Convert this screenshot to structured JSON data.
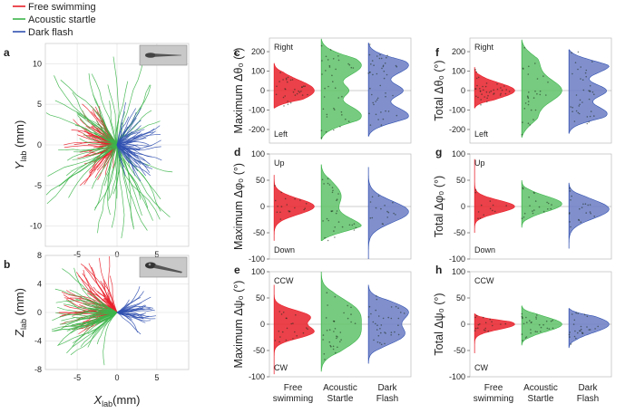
{
  "legend": {
    "items": [
      {
        "label": "Free swimming",
        "color": "#e8202a"
      },
      {
        "label": "Acoustic startle",
        "color": "#3cb54a"
      },
      {
        "label": "Dark flash",
        "color": "#3050b0"
      }
    ]
  },
  "panel_letters": {
    "a": "a",
    "b": "b",
    "c": "c",
    "d": "d",
    "e": "e",
    "f": "f",
    "g": "g",
    "h": "h"
  },
  "chart_data": [
    {
      "id": "a",
      "type": "line",
      "subtype": "trajectory-overlay",
      "title": "",
      "xlabel_main": "X",
      "xlabel_sub": "lab",
      "xunit": "(mm)",
      "ylabel_main": "Y",
      "ylabel_sub": "lab",
      "yunit": "(mm)",
      "xlim": [
        -9,
        9
      ],
      "ylim": [
        -12.5,
        12.5
      ],
      "xticks": [
        -5,
        0,
        5
      ],
      "yticks": [
        -10,
        -5,
        0,
        5,
        10
      ],
      "grid": true,
      "inset": "fish-dorsal-view",
      "series": [
        {
          "name": "Free swimming",
          "count": 80,
          "angle_range_deg": [
            120,
            240
          ],
          "length_range_mm": [
            1,
            7
          ]
        },
        {
          "name": "Acoustic startle",
          "count": 70,
          "angle_range_deg": [
            40,
            320
          ],
          "length_range_mm": [
            3,
            12
          ]
        },
        {
          "name": "Dark flash",
          "count": 55,
          "angle_range_deg": [
            -70,
            70
          ],
          "length_range_mm": [
            2,
            6
          ]
        }
      ]
    },
    {
      "id": "b",
      "type": "line",
      "subtype": "trajectory-overlay",
      "xlabel_main": "X",
      "xlabel_sub": "lab",
      "xunit": "(mm)",
      "ylabel_main": "Z",
      "ylabel_sub": "lab",
      "yunit": "(mm)",
      "xlim": [
        -9,
        9
      ],
      "ylim": [
        -8,
        8
      ],
      "xticks": [
        -5,
        0,
        5
      ],
      "yticks": [
        -8,
        -4,
        0,
        4,
        8
      ],
      "grid": true,
      "inset": "fish-lateral-view",
      "series": [
        {
          "name": "Free swimming",
          "count": 70,
          "angle_range_deg": [
            115,
            200
          ],
          "length_range_mm": [
            2,
            8
          ]
        },
        {
          "name": "Acoustic startle",
          "count": 50,
          "angle_range_deg": [
            150,
            230
          ],
          "length_range_mm": [
            3,
            9
          ]
        },
        {
          "name": "Dark flash",
          "count": 30,
          "angle_range_deg": [
            -35,
            30
          ],
          "length_range_mm": [
            2,
            5
          ]
        }
      ]
    },
    {
      "id": "c",
      "type": "violin",
      "ylabel": "Maximum Δθ₀ (°)",
      "ylim": [
        -270,
        270
      ],
      "yticks": [
        -200,
        -100,
        0,
        100,
        200
      ],
      "annotations": [
        "Right",
        "Left"
      ],
      "categories": [
        "Free swimming",
        "Acoustic Startle",
        "Dark Flash"
      ],
      "series": [
        {
          "name": "Free swimming",
          "peaks": [
            [
              0,
              55,
              0.8
            ]
          ],
          "extent": [
            -90,
            140
          ]
        },
        {
          "name": "Acoustic startle",
          "peaks": [
            [
              130,
              60,
              1.0
            ],
            [
              -130,
              60,
              1.0
            ],
            [
              0,
              30,
              0.5
            ]
          ],
          "extent": [
            -250,
            265
          ]
        },
        {
          "name": "Dark flash",
          "peaks": [
            [
              130,
              50,
              1.0
            ],
            [
              -130,
              50,
              1.0
            ],
            [
              0,
              35,
              0.8
            ]
          ],
          "extent": [
            -235,
            245
          ]
        }
      ]
    },
    {
      "id": "d",
      "type": "violin",
      "ylabel": "Maximum Δφ₀ (°)",
      "ylim": [
        -100,
        100
      ],
      "yticks": [
        -100,
        -50,
        0,
        50,
        100
      ],
      "annotations": [
        "Up",
        "Down"
      ],
      "categories": [
        "Free swimming",
        "Acoustic Startle",
        "Dark Flash"
      ],
      "series": [
        {
          "name": "Free swimming",
          "peaks": [
            [
              0,
              15,
              1.0
            ]
          ],
          "extent": [
            -65,
            60
          ]
        },
        {
          "name": "Acoustic startle",
          "peaks": [
            [
              -40,
              18,
              1.0
            ],
            [
              20,
              25,
              0.5
            ]
          ],
          "extent": [
            -65,
            80
          ]
        },
        {
          "name": "Dark flash",
          "peaks": [
            [
              -10,
              20,
              1.0
            ]
          ],
          "extent": [
            -100,
            75
          ]
        }
      ]
    },
    {
      "id": "e",
      "type": "violin",
      "ylabel": "Maximum Δψ₀ (°)",
      "ylim": [
        -100,
        100
      ],
      "yticks": [
        -100,
        -50,
        0,
        50,
        100
      ],
      "annotations": [
        "CCW",
        "CW"
      ],
      "categories": [
        "Free swimming",
        "Acoustic Startle",
        "Dark Flash"
      ],
      "series": [
        {
          "name": "Free swimming",
          "peaks": [
            [
              15,
              12,
              0.9
            ],
            [
              -15,
              12,
              1.0
            ]
          ],
          "extent": [
            -95,
            75
          ]
        },
        {
          "name": "Acoustic startle",
          "peaks": [
            [
              25,
              25,
              1.0
            ],
            [
              -25,
              25,
              1.0
            ]
          ],
          "extent": [
            -90,
            100
          ]
        },
        {
          "name": "Dark flash",
          "peaks": [
            [
              25,
              18,
              1.0
            ],
            [
              -20,
              18,
              0.9
            ]
          ],
          "extent": [
            -75,
            75
          ]
        }
      ]
    },
    {
      "id": "f",
      "type": "violin",
      "ylabel": "Total Δθ₀ (°)",
      "ylim": [
        -270,
        270
      ],
      "yticks": [
        -200,
        -100,
        0,
        100,
        200
      ],
      "annotations": [
        "Right",
        "Left"
      ],
      "categories": [
        "Free swimming",
        "Acoustic Startle",
        "Dark Flash"
      ],
      "series": [
        {
          "name": "Free swimming",
          "peaks": [
            [
              0,
              40,
              1.0
            ]
          ],
          "extent": [
            -90,
            120
          ]
        },
        {
          "name": "Acoustic startle",
          "peaks": [
            [
              0,
              60,
              1.0
            ],
            [
              150,
              60,
              0.4
            ],
            [
              -150,
              60,
              0.35
            ]
          ],
          "extent": [
            -240,
            260
          ]
        },
        {
          "name": "Dark flash",
          "peaks": [
            [
              130,
              45,
              0.9
            ],
            [
              -120,
              45,
              0.85
            ],
            [
              0,
              35,
              0.8
            ]
          ],
          "extent": [
            -220,
            210
          ]
        }
      ]
    },
    {
      "id": "g",
      "type": "violin",
      "ylabel": "Total Δφ₀ (°)",
      "ylim": [
        -100,
        100
      ],
      "yticks": [
        -100,
        -50,
        0,
        50,
        100
      ],
      "annotations": [
        "Up",
        "Down"
      ],
      "categories": [
        "Free swimming",
        "Acoustic Startle",
        "Dark Flash"
      ],
      "series": [
        {
          "name": "Free swimming",
          "peaks": [
            [
              0,
              12,
              1.0
            ]
          ],
          "extent": [
            -50,
            90
          ]
        },
        {
          "name": "Acoustic startle",
          "peaks": [
            [
              5,
              15,
              1.0
            ]
          ],
          "extent": [
            -40,
            50
          ]
        },
        {
          "name": "Dark flash",
          "peaks": [
            [
              -5,
              18,
              1.0
            ]
          ],
          "extent": [
            -80,
            45
          ]
        }
      ]
    },
    {
      "id": "h",
      "type": "violin",
      "ylabel": "Total Δψ₀ (°)",
      "ylim": [
        -100,
        100
      ],
      "yticks": [
        -100,
        -50,
        0,
        50,
        100
      ],
      "annotations": [
        "CCW",
        "CW"
      ],
      "categories": [
        "Free swimming",
        "Acoustic Startle",
        "Dark Flash"
      ],
      "series": [
        {
          "name": "Free swimming",
          "peaks": [
            [
              0,
              10,
              1.0
            ]
          ],
          "extent": [
            -55,
            20
          ]
        },
        {
          "name": "Acoustic startle",
          "peaks": [
            [
              0,
              14,
              1.0
            ]
          ],
          "extent": [
            -40,
            35
          ]
        },
        {
          "name": "Dark flash",
          "peaks": [
            [
              0,
              16,
              1.0
            ]
          ],
          "extent": [
            -45,
            30
          ]
        }
      ]
    }
  ],
  "colors": {
    "free": "#e8202a",
    "startle": "#3cb54a",
    "flash": "#3050b0",
    "free_fill": "#e8202a",
    "startle_fill": "#5fc26a",
    "flash_fill": "#6b7cc4",
    "grid": "#e6e6e6",
    "axis": "#555555"
  }
}
